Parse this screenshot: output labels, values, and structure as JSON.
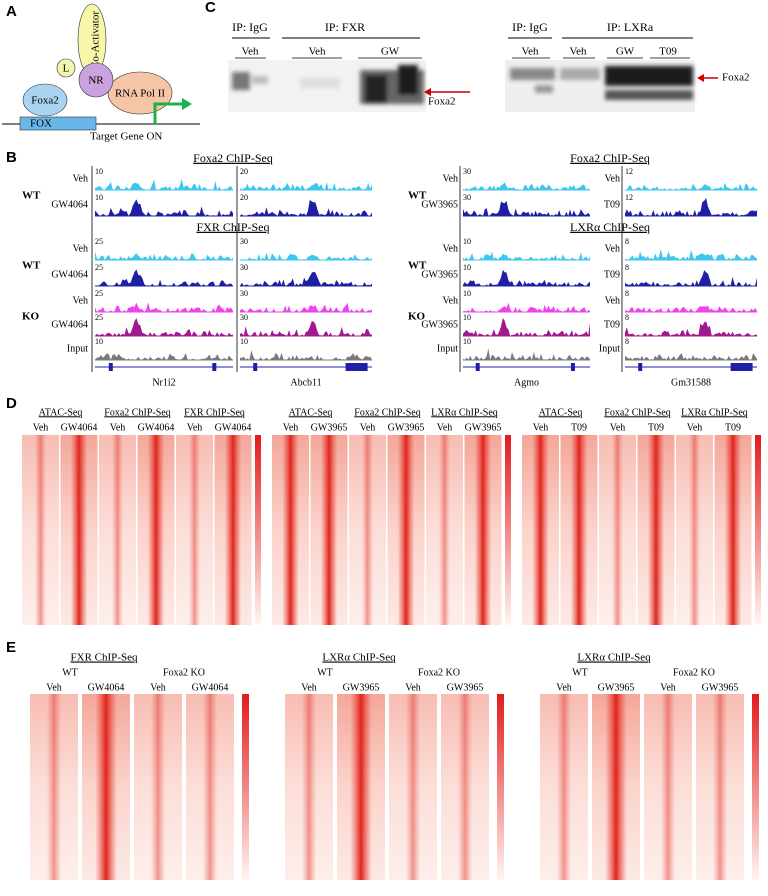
{
  "panels": {
    "a": {
      "label": "A",
      "ligand": "L",
      "receptor": "NR",
      "coactivator": "Co-Activator",
      "polymerase": "RNA Pol II",
      "pioneer": "Foxa2",
      "motif": "FOX",
      "gene": "Target Gene ON"
    },
    "c": {
      "label": "C",
      "blots": [
        {
          "groups": [
            {
              "title": "IP: IgG",
              "lanes": [
                "Veh"
              ]
            },
            {
              "title": "IP: FXR",
              "lanes": [
                "Veh",
                "GW"
              ]
            }
          ],
          "band": "Foxa2"
        },
        {
          "groups": [
            {
              "title": "IP: IgG",
              "lanes": [
                "Veh"
              ]
            },
            {
              "title": "IP: LXRa",
              "lanes": [
                "Veh",
                "GW",
                "T09"
              ]
            }
          ],
          "band": "Foxa2"
        }
      ]
    },
    "b": {
      "label": "B",
      "sides": [
        {
          "assays": [
            "Foxa2 ChIP-Seq",
            "FXR ChIP-Seq"
          ],
          "genotypes": [
            "WT",
            "WT",
            "KO"
          ],
          "loci": [
            {
              "gene": "Nr1i2",
              "rows": [
                "Veh",
                "GW4064",
                "Veh",
                "GW4064",
                "Veh",
                "GW4064",
                "Input"
              ],
              "scales": [
                10,
                10,
                25,
                25,
                25,
                25,
                10
              ]
            },
            {
              "gene": "Abcb11",
              "scales": [
                20,
                20,
                30,
                30,
                30,
                30,
                10
              ]
            }
          ]
        },
        {
          "assays": [
            "Foxa2 ChIP-Seq",
            "LXRα ChIP-Seq"
          ],
          "genotypes": [
            "WT",
            "WT",
            "KO"
          ],
          "loci": [
            {
              "gene": "Agmo",
              "rows": [
                "Veh",
                "GW3965",
                "Veh",
                "GW3965",
                "Veh",
                "GW3965",
                "Input"
              ],
              "scales": [
                30,
                30,
                10,
                10,
                10,
                10,
                10
              ]
            },
            {
              "gene": "Gm31588",
              "rows": [
                "Veh",
                "T09",
                "Veh",
                "T09",
                "Veh",
                "T09",
                "Input"
              ],
              "scales": [
                12,
                12,
                8,
                8,
                8,
                8,
                8
              ]
            }
          ]
        }
      ]
    },
    "d": {
      "label": "D",
      "groups": [
        {
          "assays": [
            "ATAC-Seq",
            "Foxa2 ChIP-Seq",
            "FXR ChIP-Seq"
          ],
          "conditions": [
            "Veh",
            "GW4064"
          ]
        },
        {
          "assays": [
            "ATAC-Seq",
            "Foxa2 ChIP-Seq",
            "LXRα ChIP-Seq"
          ],
          "conditions": [
            "Veh",
            "GW3965"
          ]
        },
        {
          "assays": [
            "ATAC-Seq",
            "Foxa2 ChIP-Seq",
            "LXRα ChIP-Seq"
          ],
          "conditions": [
            "Veh",
            "T09"
          ]
        }
      ]
    },
    "e": {
      "label": "E",
      "groups": [
        {
          "assay": "FXR ChIP-Seq",
          "genotypes": [
            "WT",
            "Foxa2 KO"
          ],
          "conditions": [
            "Veh",
            "GW4064"
          ]
        },
        {
          "assay": "LXRα ChIP-Seq",
          "genotypes": [
            "WT",
            "Foxa2 KO"
          ],
          "conditions": [
            "Veh",
            "GW3965"
          ]
        },
        {
          "assay": "LXRα ChIP-Seq",
          "genotypes": [
            "WT",
            "Foxa2 KO"
          ],
          "conditions": [
            "Veh",
            "GW3965"
          ]
        }
      ]
    }
  }
}
